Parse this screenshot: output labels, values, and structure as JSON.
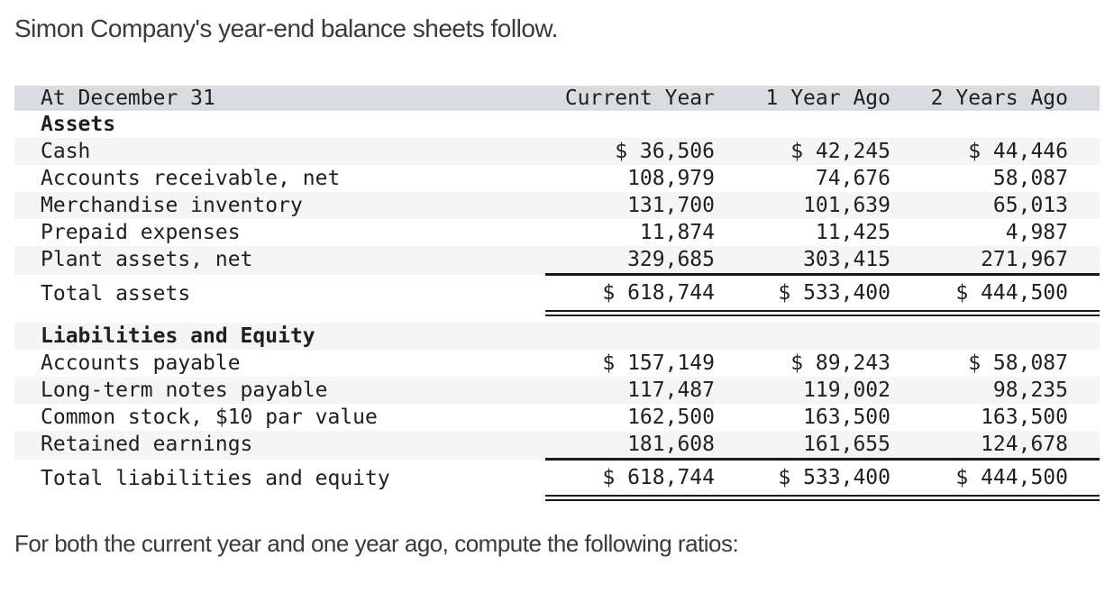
{
  "page": {
    "title": "Simon Company's year-end balance sheets follow.",
    "footer": "For both the current year and one year ago, compute the following ratios:"
  },
  "balance_sheet": {
    "date_header": "At December 31",
    "col_headers": [
      "Current Year",
      "1 Year Ago",
      "2 Years Ago"
    ],
    "rows": [
      {
        "label": "Assets",
        "values": [
          "",
          "",
          ""
        ]
      },
      {
        "label": "Cash",
        "values": [
          "$ 36,506",
          "$ 42,245",
          "$ 44,446"
        ]
      },
      {
        "label": "Accounts receivable, net",
        "values": [
          "108,979",
          "74,676",
          "58,087"
        ]
      },
      {
        "label": "Merchandise inventory",
        "values": [
          "131,700",
          "101,639",
          "65,013"
        ]
      },
      {
        "label": "Prepaid expenses",
        "values": [
          "11,874",
          "11,425",
          "4,987"
        ]
      },
      {
        "label": "Plant assets, net",
        "values": [
          "329,685",
          "303,415",
          "271,967"
        ]
      },
      {
        "label": "Total assets",
        "values": [
          "$ 618,744",
          "$ 533,400",
          "$ 444,500"
        ]
      },
      {
        "label": "Liabilities and Equity",
        "values": [
          "",
          "",
          ""
        ]
      },
      {
        "label": "Accounts payable",
        "values": [
          "$ 157,149",
          "$ 89,243",
          "$ 58,087"
        ]
      },
      {
        "label": "Long-term notes payable",
        "values": [
          "117,487",
          "119,002",
          "98,235"
        ]
      },
      {
        "label": "Common stock, $10 par value",
        "values": [
          "162,500",
          "163,500",
          "163,500"
        ]
      },
      {
        "label": "Retained earnings",
        "values": [
          "181,608",
          "161,655",
          "124,678"
        ]
      },
      {
        "label": "Total liabilities and equity",
        "values": [
          "$ 618,744",
          "$ 533,400",
          "$ 444,500"
        ]
      }
    ]
  }
}
